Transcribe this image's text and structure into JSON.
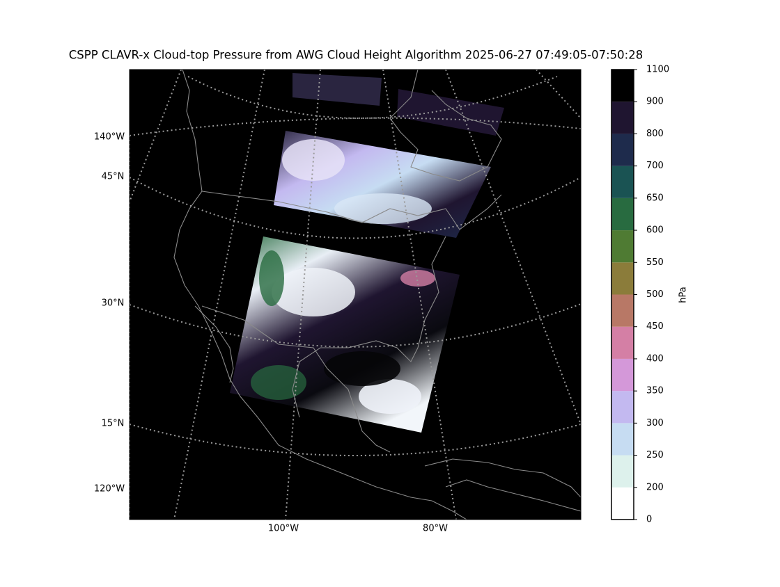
{
  "map": {
    "title": "CSPP CLAVR-x Cloud-top Pressure from AWG Cloud Height Algorithm 2025-06-27 07:49:05-07:50:28",
    "labels": [
      "140°W",
      "45°N",
      "30°N",
      "15°N",
      "120°W",
      "100°W",
      "80°W"
    ],
    "colorbar": {
      "label": "hPa",
      "boundaries": [
        0,
        200,
        250,
        300,
        350,
        400,
        450,
        500,
        550,
        600,
        650,
        700,
        800,
        900,
        1100
      ],
      "colors": [
        "#ffffff",
        "#ddf1ec",
        "#c6dcf2",
        "#c3b9f0",
        "#d498d9",
        "#d47fa5",
        "#b87866",
        "#8b7c3a",
        "#4f7b33",
        "#286b40",
        "#1a5353",
        "#1e2b4c",
        "#1f1530",
        "#000000"
      ]
    }
  }
}
